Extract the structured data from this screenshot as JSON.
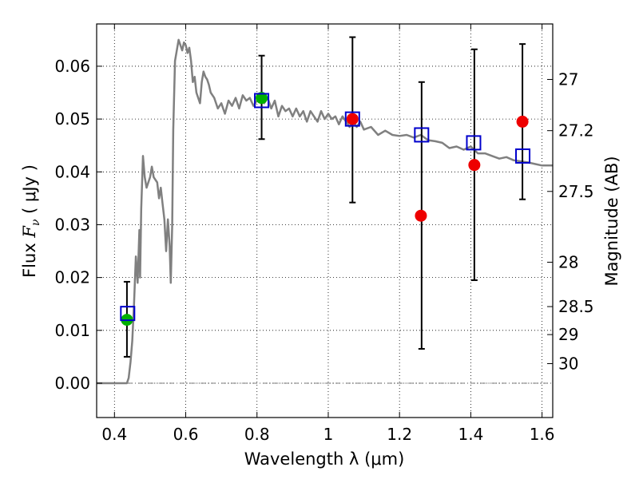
{
  "chart_data": {
    "type": "scatter",
    "title": "",
    "xlabel": "Wavelength  λ (μm)",
    "ylabel": "Flux  F_ν  ( μJy )",
    "ylabel_parts": {
      "pre": "Flux ",
      "sym": "F",
      "sub": "ν",
      "post": " ( μJy )"
    },
    "y2label": "Magnitude (AB)",
    "xlim": [
      0.35,
      1.63
    ],
    "ylim": [
      -0.0065,
      0.068
    ],
    "grid": true,
    "x_ticks": [
      {
        "value": 0.4,
        "label": "0.4"
      },
      {
        "value": 0.6,
        "label": "0.6"
      },
      {
        "value": 0.8,
        "label": "0.8"
      },
      {
        "value": 1.0,
        "label": "1"
      },
      {
        "value": 1.2,
        "label": "1.2"
      },
      {
        "value": 1.4,
        "label": "1.4"
      },
      {
        "value": 1.6,
        "label": "1.6"
      }
    ],
    "y_ticks": [
      {
        "value": 0.0,
        "label": "0.00"
      },
      {
        "value": 0.01,
        "label": "0.01"
      },
      {
        "value": 0.02,
        "label": "0.02"
      },
      {
        "value": 0.03,
        "label": "0.03"
      },
      {
        "value": 0.04,
        "label": "0.04"
      },
      {
        "value": 0.05,
        "label": "0.05"
      },
      {
        "value": 0.06,
        "label": "0.06"
      }
    ],
    "y2_ticks": [
      {
        "flux": 0.0575,
        "label": "27"
      },
      {
        "flux": 0.0478,
        "label": "27.2"
      },
      {
        "flux": 0.0363,
        "label": "27.5"
      },
      {
        "flux": 0.0229,
        "label": "28"
      },
      {
        "flux": 0.0145,
        "label": "28.5"
      },
      {
        "flux": 0.0092,
        "label": "29"
      },
      {
        "flux": 0.0037,
        "label": "30"
      }
    ],
    "model_spectrum": {
      "color": "#808080",
      "x": [
        0.35,
        0.41,
        0.418,
        0.425,
        0.43,
        0.435,
        0.44,
        0.445,
        0.45,
        0.455,
        0.46,
        0.465,
        0.47,
        0.472,
        0.475,
        0.48,
        0.485,
        0.49,
        0.5,
        0.505,
        0.51,
        0.52,
        0.525,
        0.53,
        0.535,
        0.54,
        0.545,
        0.55,
        0.555,
        0.558,
        0.562,
        0.565,
        0.57,
        0.58,
        0.59,
        0.595,
        0.6,
        0.605,
        0.61,
        0.615,
        0.62,
        0.625,
        0.63,
        0.64,
        0.645,
        0.65,
        0.655,
        0.66,
        0.665,
        0.67,
        0.68,
        0.69,
        0.7,
        0.71,
        0.72,
        0.73,
        0.74,
        0.75,
        0.76,
        0.77,
        0.78,
        0.79,
        0.8,
        0.81,
        0.82,
        0.83,
        0.84,
        0.85,
        0.86,
        0.87,
        0.88,
        0.89,
        0.9,
        0.91,
        0.92,
        0.93,
        0.94,
        0.95,
        0.96,
        0.97,
        0.98,
        0.99,
        1.0,
        1.01,
        1.02,
        1.03,
        1.04,
        1.05,
        1.06,
        1.07,
        1.08,
        1.09,
        1.1,
        1.12,
        1.14,
        1.16,
        1.18,
        1.2,
        1.22,
        1.24,
        1.26,
        1.28,
        1.3,
        1.32,
        1.34,
        1.36,
        1.38,
        1.4,
        1.42,
        1.44,
        1.46,
        1.48,
        1.5,
        1.52,
        1.54,
        1.56,
        1.58,
        1.6,
        1.63
      ],
      "y": [
        0.0,
        0.0,
        0.0,
        0.0,
        0.0,
        0.0,
        0.001,
        0.004,
        0.008,
        0.015,
        0.024,
        0.019,
        0.029,
        0.02,
        0.033,
        0.043,
        0.039,
        0.037,
        0.039,
        0.041,
        0.039,
        0.038,
        0.035,
        0.037,
        0.034,
        0.031,
        0.025,
        0.031,
        0.026,
        0.019,
        0.03,
        0.048,
        0.061,
        0.065,
        0.063,
        0.0645,
        0.064,
        0.0625,
        0.0635,
        0.061,
        0.057,
        0.058,
        0.055,
        0.053,
        0.057,
        0.059,
        0.058,
        0.0575,
        0.0565,
        0.055,
        0.054,
        0.052,
        0.053,
        0.051,
        0.0535,
        0.0525,
        0.054,
        0.052,
        0.0545,
        0.0535,
        0.054,
        0.0525,
        0.0535,
        0.0545,
        0.053,
        0.054,
        0.052,
        0.0535,
        0.0505,
        0.0525,
        0.0515,
        0.052,
        0.0505,
        0.052,
        0.0505,
        0.0515,
        0.0495,
        0.0515,
        0.0505,
        0.0495,
        0.0515,
        0.05,
        0.051,
        0.05,
        0.0505,
        0.049,
        0.0505,
        0.0495,
        0.0485,
        0.0495,
        0.0485,
        0.0495,
        0.048,
        0.0485,
        0.047,
        0.0478,
        0.047,
        0.0468,
        0.047,
        0.0465,
        0.047,
        0.046,
        0.0458,
        0.0455,
        0.0445,
        0.0448,
        0.0442,
        0.0448,
        0.0435,
        0.0435,
        0.043,
        0.0425,
        0.0428,
        0.0422,
        0.042,
        0.0418,
        0.0415,
        0.0412,
        0.0412
      ]
    },
    "series": [
      {
        "marker": "circle",
        "color": "#00b000",
        "x": [
          0.435,
          0.813
        ],
        "y": [
          0.012,
          0.054
        ]
      },
      {
        "marker": "circle",
        "color": "#ee0000",
        "x": [
          1.068,
          1.26,
          1.41,
          1.545
        ],
        "y": [
          0.05,
          0.0317,
          0.0413,
          0.0495
        ]
      },
      {
        "marker": "open-square",
        "color": "#0000cc",
        "x": [
          0.437,
          0.813,
          1.068,
          1.262,
          1.408,
          1.546
        ],
        "y": [
          0.0132,
          0.0535,
          0.05,
          0.047,
          0.0455,
          0.043
        ]
      }
    ],
    "error_bars": [
      {
        "x": 0.435,
        "y": 0.012,
        "low": 0.005,
        "high": 0.0192
      },
      {
        "x": 0.813,
        "y": 0.054,
        "low": 0.0462,
        "high": 0.062
      },
      {
        "x": 1.068,
        "y": 0.05,
        "low": 0.0342,
        "high": 0.0655
      },
      {
        "x": 1.262,
        "y": 0.0317,
        "low": 0.0065,
        "high": 0.057
      },
      {
        "x": 1.41,
        "y": 0.0413,
        "low": 0.0195,
        "high": 0.0632
      },
      {
        "x": 1.545,
        "y": 0.0495,
        "low": 0.0348,
        "high": 0.0642
      }
    ]
  }
}
